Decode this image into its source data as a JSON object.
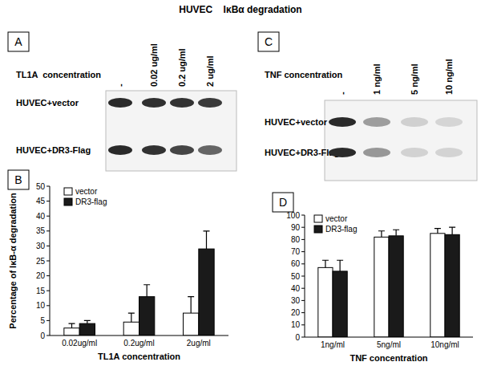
{
  "title": "HUVEC    IκBα degradation",
  "blots": [
    {
      "letter": "A",
      "treatment_label": "TL1A  concentration",
      "lanes": [
        "-",
        "0.02 ug/ml",
        "0.2 ug/ml",
        "2 ug/ml"
      ],
      "rows": [
        "HUVEC+vector",
        "HUVEC+DR3-Flag"
      ]
    },
    {
      "letter": "C",
      "treatment_label": "TNF concentration",
      "lanes": [
        "-",
        "1 ng/ml",
        "5 ng/ml",
        "10 ng/ml"
      ],
      "rows": [
        "HUVEC+vector",
        "HUVEC+DR3-Flag"
      ]
    }
  ],
  "chart_panel_labels": [
    "B",
    "D"
  ],
  "chart_data": [
    {
      "type": "bar",
      "x_label": "TL1A concentration",
      "y_label": "Percentage of IκB-α degradation",
      "categories": [
        "0.02ug/ml",
        "0.2ug/ml",
        "2ug/ml"
      ],
      "series": [
        {
          "name": "vector",
          "color": "#ffffff",
          "values": [
            2.5,
            4.5,
            7.5
          ],
          "errors": [
            1.5,
            3,
            5.5
          ]
        },
        {
          "name": "DR3-flag",
          "color": "#1a1a1a",
          "values": [
            4,
            13,
            29
          ],
          "errors": [
            1,
            4,
            6
          ]
        }
      ],
      "ylim": [
        0,
        50
      ],
      "yticks": [
        0,
        5,
        10,
        15,
        20,
        25,
        30,
        35,
        40,
        45,
        50
      ],
      "grid": false,
      "legend": "top-left"
    },
    {
      "type": "bar",
      "x_label": "TNF concentration",
      "categories": [
        "1ng/ml",
        "5ng/ml",
        "10ng/ml"
      ],
      "series": [
        {
          "name": "vector",
          "color": "#ffffff",
          "values": [
            57,
            82,
            85
          ],
          "errors": [
            6,
            5,
            4
          ]
        },
        {
          "name": "DR3-flag",
          "color": "#1a1a1a",
          "values": [
            54,
            83,
            84
          ],
          "errors": [
            9,
            5,
            6
          ]
        }
      ],
      "ylim": [
        0,
        100
      ],
      "yticks": [
        0,
        10,
        20,
        30,
        40,
        50,
        60,
        70,
        80,
        90,
        100
      ],
      "grid": false,
      "legend": "top-left"
    }
  ]
}
